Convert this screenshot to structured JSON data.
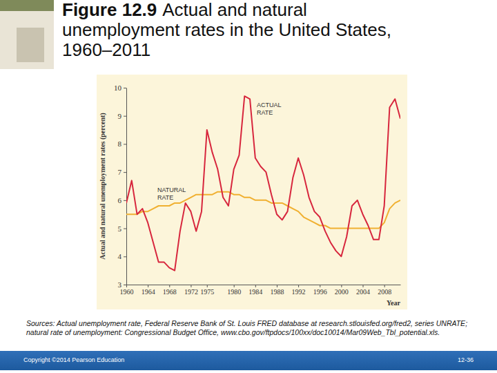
{
  "slide": {
    "figure": "Figure 12.9",
    "sources": "Sources: Actual unemployment rate, Federal Reserve Bank of St. Louis FRED database at research.stlouisfed.org/fred2, series UNRATE; natural rate of unemployment: Congressional Budget Office, www.cbo.gov/ftpdocs/100xx/doc10014/Mar09Web_Tbl_potential.xls.",
    "copyright": "Copyright ©2014 Pearson Education",
    "page": "12-36"
  },
  "chart_data": {
    "type": "line",
    "title": "Actual and natural unemployment rates in the United States, 1960–2011",
    "x_label": "Year",
    "y_label": "Actual and natural unemployment rates (percent)",
    "x": [
      1960,
      1961,
      1962,
      1963,
      1964,
      1965,
      1966,
      1967,
      1968,
      1969,
      1970,
      1971,
      1972,
      1973,
      1974,
      1975,
      1976,
      1977,
      1978,
      1979,
      1980,
      1981,
      1982,
      1983,
      1984,
      1985,
      1986,
      1987,
      1988,
      1989,
      1990,
      1991,
      1992,
      1993,
      1994,
      1995,
      1996,
      1997,
      1998,
      1999,
      2000,
      2001,
      2002,
      2003,
      2004,
      2005,
      2006,
      2007,
      2008,
      2009,
      2010,
      2011
    ],
    "series": [
      {
        "name": "ACTUAL RATE",
        "color": "#d7263d",
        "values": [
          5.9,
          6.7,
          5.5,
          5.7,
          5.2,
          4.5,
          3.8,
          3.8,
          3.6,
          3.5,
          4.9,
          5.9,
          5.6,
          4.9,
          5.6,
          8.5,
          7.7,
          7.1,
          6.1,
          5.8,
          7.1,
          7.6,
          9.7,
          9.6,
          7.5,
          7.2,
          7.0,
          6.2,
          5.5,
          5.3,
          5.6,
          6.8,
          7.5,
          6.9,
          6.1,
          5.6,
          5.4,
          4.9,
          4.5,
          4.2,
          4.0,
          4.7,
          5.8,
          6.0,
          5.5,
          5.1,
          4.6,
          4.6,
          5.8,
          9.3,
          9.6,
          8.9
        ]
      },
      {
        "name": "NATURAL RATE",
        "color": "#f0b030",
        "values": [
          5.5,
          5.5,
          5.5,
          5.6,
          5.6,
          5.7,
          5.8,
          5.8,
          5.8,
          5.9,
          5.9,
          6.0,
          6.1,
          6.2,
          6.2,
          6.2,
          6.2,
          6.3,
          6.3,
          6.3,
          6.2,
          6.2,
          6.1,
          6.1,
          6.0,
          6.0,
          6.0,
          5.9,
          5.9,
          5.9,
          5.8,
          5.7,
          5.6,
          5.4,
          5.3,
          5.2,
          5.1,
          5.1,
          5.0,
          5.0,
          5.0,
          5.0,
          5.0,
          5.0,
          5.0,
          5.0,
          5.0,
          5.0,
          5.2,
          5.7,
          5.9,
          6.0
        ]
      }
    ],
    "xlim": [
      1960,
      2011
    ],
    "xticks": [
      1960,
      1964,
      1968,
      1972,
      1975,
      1980,
      1984,
      1988,
      1992,
      1996,
      2000,
      2004,
      2008
    ],
    "ylim": [
      3,
      10
    ],
    "yticks": [
      3,
      4,
      5,
      6,
      7,
      8,
      9,
      10
    ],
    "grid": false
  }
}
